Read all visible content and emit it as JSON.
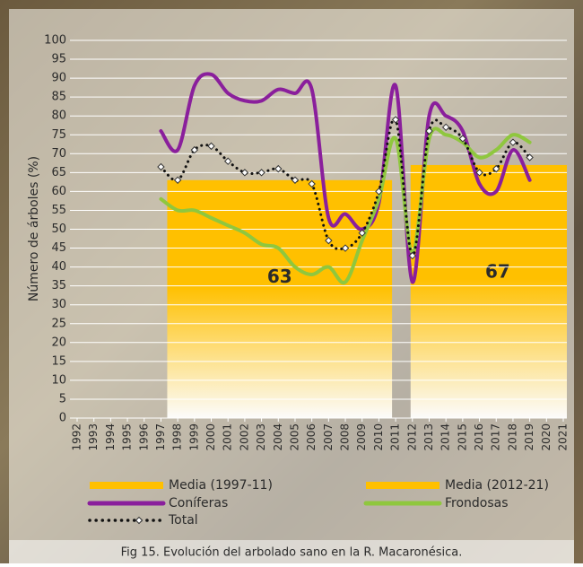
{
  "chart_data": {
    "type": "line",
    "y_label": "Número de árboles (%)",
    "caption": "Fig 15. Evolución del arbolado sano en la R. Macaronésica.",
    "x": [
      1992,
      1993,
      1994,
      1995,
      1996,
      1997,
      1998,
      1999,
      2000,
      2001,
      2002,
      2003,
      2004,
      2005,
      2006,
      2007,
      2008,
      2009,
      2010,
      2011,
      2012,
      2013,
      2014,
      2015,
      2016,
      2017,
      2018,
      2019,
      2020,
      2021
    ],
    "ylim": [
      0,
      100
    ],
    "yticks": [
      0,
      5,
      10,
      15,
      20,
      25,
      30,
      35,
      40,
      45,
      50,
      55,
      60,
      65,
      70,
      75,
      80,
      85,
      90,
      95,
      100
    ],
    "grid": true,
    "averages": [
      {
        "name": "Media (1997-11)",
        "value": 63,
        "from": 1997,
        "to": 2011,
        "color": "#ffc000"
      },
      {
        "name": "Media (2012-21)",
        "value": 67,
        "from": 2012,
        "to": 2021,
        "color": "#ffc000"
      }
    ],
    "series": [
      {
        "name": "Coníferas",
        "color": "#8a1f9c",
        "style": "solid",
        "values": [
          null,
          null,
          null,
          null,
          null,
          76,
          71,
          88,
          91,
          86,
          84,
          84,
          87,
          86,
          87,
          53,
          54,
          50,
          57,
          88,
          36,
          80,
          80,
          76,
          62,
          60,
          71,
          63,
          null,
          null
        ]
      },
      {
        "name": "Frondosas",
        "color": "#8fc73e",
        "style": "solid",
        "values": [
          null,
          null,
          null,
          null,
          null,
          58,
          55,
          55,
          53,
          51,
          49,
          46,
          45,
          40,
          38,
          40,
          36,
          47,
          58,
          74,
          44,
          74,
          75,
          73,
          69,
          71,
          75,
          73,
          null,
          null
        ]
      },
      {
        "name": "Total",
        "color": "#111111",
        "style": "dotted",
        "values": [
          null,
          null,
          null,
          null,
          null,
          66.5,
          63,
          71,
          72,
          68,
          65,
          65,
          66,
          63,
          62,
          47,
          45,
          49,
          60,
          79,
          43,
          76,
          77,
          74,
          65,
          66,
          73,
          69,
          null,
          null
        ]
      }
    ]
  }
}
